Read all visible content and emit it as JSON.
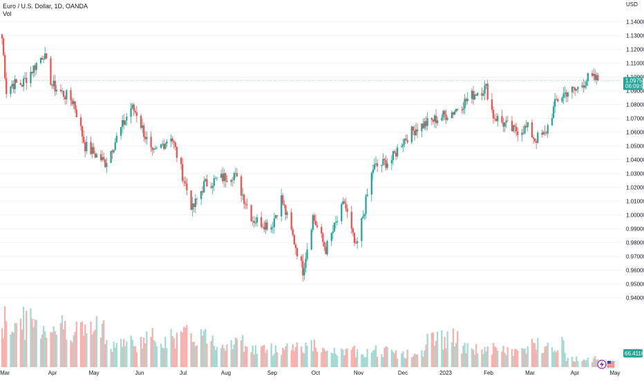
{
  "legend": {
    "title": "Euro / U.S. Dollar, 1D, OANDA",
    "volume_label": "Vol"
  },
  "chart_data": {
    "type": "candlestick",
    "title": "Euro / U.S. Dollar, 1D, OANDA",
    "currency": "USD",
    "y_ticks": [
      "1.14000",
      "1.13000",
      "1.12000",
      "1.11000",
      "1.10000",
      "1.09000",
      "1.08000",
      "1.07000",
      "1.06000",
      "1.05000",
      "1.04000",
      "1.03000",
      "1.02000",
      "1.01000",
      "1.00000",
      "0.99000",
      "0.98000",
      "0.97000",
      "0.96000",
      "0.95000",
      "0.94000"
    ],
    "ylim": [
      0.94,
      1.14
    ],
    "x_ticks": [
      "Mar",
      "Apr",
      "May",
      "Jun",
      "Jul",
      "Aug",
      "Sep",
      "Oct",
      "Nov",
      "Dec",
      "2023",
      "Feb",
      "Mar",
      "Apr",
      "May"
    ],
    "current_price": "1.09755",
    "countdown": "06:09:01",
    "volume_value": "66.411K",
    "grid": true,
    "colors": {
      "up": "#26a69a",
      "down": "#ef5350",
      "up_volume": "#a5d9d3",
      "down_volume": "#f8b1ad",
      "price_line": "#26a69a"
    },
    "anchors": [
      {
        "date": "2022-03-01",
        "close": 1.128
      },
      {
        "date": "2022-03-04",
        "close": 1.09
      },
      {
        "date": "2022-03-08",
        "close": 1.095
      },
      {
        "date": "2022-03-15",
        "close": 1.095
      },
      {
        "date": "2022-03-30",
        "close": 1.117
      },
      {
        "date": "2022-04-05",
        "close": 1.094
      },
      {
        "date": "2022-04-20",
        "close": 1.082
      },
      {
        "date": "2022-04-28",
        "close": 1.05
      },
      {
        "date": "2022-05-12",
        "close": 1.038
      },
      {
        "date": "2022-05-30",
        "close": 1.078
      },
      {
        "date": "2022-06-03",
        "close": 1.074
      },
      {
        "date": "2022-06-14",
        "close": 1.043
      },
      {
        "date": "2022-06-27",
        "close": 1.058
      },
      {
        "date": "2022-07-12",
        "close": 1.004
      },
      {
        "date": "2022-07-20",
        "close": 1.022
      },
      {
        "date": "2022-08-10",
        "close": 1.03
      },
      {
        "date": "2022-08-23",
        "close": 0.997
      },
      {
        "date": "2022-09-05",
        "close": 0.992
      },
      {
        "date": "2022-09-12",
        "close": 1.012
      },
      {
        "date": "2022-09-27",
        "close": 0.96
      },
      {
        "date": "2022-10-04",
        "close": 0.999
      },
      {
        "date": "2022-10-13",
        "close": 0.975
      },
      {
        "date": "2022-10-26",
        "close": 1.009
      },
      {
        "date": "2022-11-03",
        "close": 0.975
      },
      {
        "date": "2022-11-15",
        "close": 1.034
      },
      {
        "date": "2022-11-28",
        "close": 1.04
      },
      {
        "date": "2022-12-05",
        "close": 1.053
      },
      {
        "date": "2022-12-15",
        "close": 1.063
      },
      {
        "date": "2022-12-30",
        "close": 1.07
      },
      {
        "date": "2023-01-10",
        "close": 1.075
      },
      {
        "date": "2023-01-26",
        "close": 1.089
      },
      {
        "date": "2023-02-02",
        "close": 1.092
      },
      {
        "date": "2023-02-07",
        "close": 1.072
      },
      {
        "date": "2023-02-21",
        "close": 1.061
      },
      {
        "date": "2023-03-03",
        "close": 1.063
      },
      {
        "date": "2023-03-08",
        "close": 1.055
      },
      {
        "date": "2023-03-15",
        "close": 1.058
      },
      {
        "date": "2023-03-23",
        "close": 1.083
      },
      {
        "date": "2023-03-31",
        "close": 1.09
      },
      {
        "date": "2023-04-05",
        "close": 1.09
      },
      {
        "date": "2023-04-14",
        "close": 1.099
      },
      {
        "date": "2023-04-21",
        "close": 1.098
      }
    ],
    "volume_level": [
      0.55,
      0.5,
      0.46,
      0.3,
      0.35,
      0.38,
      0.3,
      0.22,
      0.26,
      0.18,
      0.2,
      0.16,
      0.35,
      0.22,
      0.2,
      0.28,
      0.1
    ]
  },
  "icons": {
    "flash": "flash-icon",
    "flag": "us-flag-icon"
  }
}
